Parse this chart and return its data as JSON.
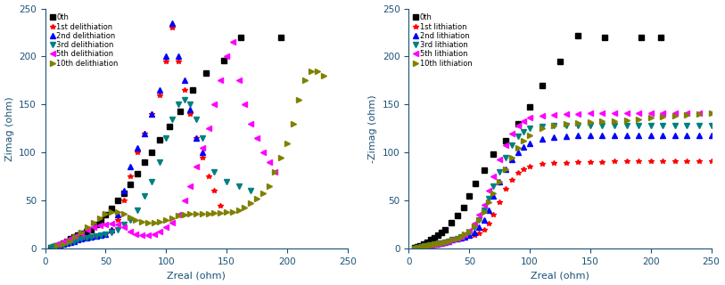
{
  "panel_a": {
    "xlabel": "Zreal (ohm)",
    "ylabel": "Zimag (ohm)",
    "xlim": [
      0,
      250
    ],
    "ylim": [
      0,
      250
    ],
    "legend_labels": [
      "0th",
      "1st delithiation",
      "2nd delithiation",
      "3rd delithiation",
      "5th delithiation",
      "10th delithiation"
    ],
    "colors": [
      "#000000",
      "#ff0000",
      "#0000ff",
      "#008080",
      "#ff00ff",
      "#808000"
    ],
    "markers": [
      "s",
      "*",
      "^",
      "v",
      "<",
      ">"
    ],
    "markersizes": [
      4,
      4,
      4,
      4,
      4,
      4
    ],
    "series": [
      {
        "zreal": [
          5,
          7,
          9,
          12,
          15,
          18,
          21,
          24,
          27,
          30,
          34,
          38,
          42,
          46,
          50,
          55,
          60,
          65,
          70,
          76,
          82,
          88,
          95,
          103,
          112,
          122,
          133,
          148,
          162,
          195
        ],
        "zimag": [
          1,
          2,
          3,
          4,
          6,
          8,
          10,
          12,
          14,
          16,
          18,
          20,
          25,
          30,
          35,
          42,
          50,
          58,
          67,
          78,
          90,
          100,
          113,
          127,
          143,
          165,
          183,
          196,
          220,
          220
        ]
      },
      {
        "zreal": [
          5,
          7,
          9,
          12,
          15,
          18,
          21,
          24,
          27,
          30,
          34,
          38,
          42,
          46,
          50,
          55,
          60,
          65,
          70,
          76,
          82,
          88,
          95,
          100,
          105,
          110,
          115,
          120,
          125,
          130,
          135,
          140,
          145
        ],
        "zimag": [
          1,
          2,
          3,
          4,
          5,
          6,
          7,
          8,
          9,
          10,
          11,
          12,
          13,
          14,
          15,
          20,
          30,
          50,
          75,
          100,
          120,
          140,
          160,
          195,
          230,
          195,
          165,
          140,
          115,
          95,
          75,
          60,
          45
        ]
      },
      {
        "zreal": [
          5,
          7,
          9,
          12,
          15,
          18,
          21,
          24,
          27,
          30,
          34,
          38,
          42,
          46,
          50,
          55,
          60,
          65,
          70,
          76,
          82,
          88,
          95,
          100,
          105,
          110,
          115,
          120,
          125,
          130
        ],
        "zimag": [
          1,
          2,
          3,
          4,
          5,
          6,
          7,
          8,
          9,
          10,
          11,
          12,
          13,
          14,
          15,
          20,
          35,
          60,
          85,
          105,
          120,
          140,
          165,
          200,
          235,
          200,
          175,
          145,
          115,
          100
        ]
      },
      {
        "zreal": [
          5,
          7,
          9,
          12,
          15,
          18,
          21,
          24,
          27,
          30,
          34,
          38,
          42,
          46,
          50,
          55,
          60,
          65,
          70,
          76,
          82,
          88,
          95,
          100,
          105,
          110,
          115,
          120,
          125,
          130,
          140,
          150,
          160,
          170
        ],
        "zimag": [
          1,
          2,
          3,
          4,
          5,
          6,
          7,
          8,
          9,
          10,
          11,
          12,
          13,
          14,
          15,
          17,
          20,
          25,
          30,
          40,
          55,
          70,
          90,
          115,
          135,
          150,
          155,
          150,
          135,
          115,
          80,
          70,
          65,
          60
        ]
      },
      {
        "zreal": [
          10,
          15,
          20,
          25,
          30,
          35,
          40,
          45,
          50,
          55,
          60,
          65,
          70,
          75,
          80,
          85,
          90,
          95,
          100,
          105,
          110,
          115,
          120,
          125,
          130,
          135,
          140,
          145,
          150,
          155,
          160,
          165,
          170,
          175,
          180,
          185,
          190
        ],
        "zimag": [
          5,
          8,
          10,
          13,
          16,
          20,
          22,
          24,
          25,
          26,
          25,
          22,
          18,
          15,
          14,
          14,
          15,
          18,
          22,
          27,
          35,
          50,
          65,
          85,
          105,
          125,
          150,
          175,
          200,
          215,
          175,
          150,
          130,
          115,
          100,
          90,
          80
        ]
      },
      {
        "zreal": [
          10,
          15,
          20,
          25,
          30,
          35,
          40,
          45,
          50,
          55,
          60,
          65,
          70,
          75,
          80,
          85,
          90,
          95,
          100,
          105,
          110,
          115,
          120,
          125,
          130,
          135,
          140,
          145,
          150,
          155,
          160,
          165,
          170,
          175,
          180,
          185,
          190,
          195,
          200,
          205,
          210,
          215,
          220,
          225,
          230
        ],
        "zimag": [
          3,
          5,
          8,
          12,
          17,
          22,
          27,
          32,
          36,
          38,
          38,
          36,
          33,
          30,
          28,
          27,
          27,
          28,
          30,
          32,
          34,
          35,
          36,
          36,
          36,
          36,
          37,
          37,
          38,
          38,
          40,
          43,
          47,
          52,
          58,
          65,
          80,
          95,
          110,
          130,
          155,
          175,
          185,
          185,
          180
        ]
      }
    ]
  },
  "panel_b": {
    "xlabel": "Zreal (ohm)",
    "ylabel": "-Zimag (ohm)",
    "xlim": [
      0,
      250
    ],
    "ylim": [
      0,
      250
    ],
    "legend_labels": [
      "0th",
      "1st lithiation",
      "2nd lithiation",
      "3rd lithiation",
      "5th lithiation",
      "10th lithiation"
    ],
    "colors": [
      "#000000",
      "#ff0000",
      "#0000ff",
      "#008080",
      "#ff00ff",
      "#808000"
    ],
    "markers": [
      "s",
      "*",
      "^",
      "v",
      "<",
      ">"
    ],
    "markersizes": [
      4,
      4,
      4,
      4,
      4,
      4
    ],
    "series": [
      {
        "zreal": [
          5,
          7,
          9,
          12,
          15,
          18,
          21,
          24,
          27,
          30,
          35,
          40,
          45,
          50,
          55,
          62,
          70,
          80,
          90,
          100,
          110,
          125,
          140,
          162,
          192,
          208
        ],
        "zimag": [
          1,
          2,
          3,
          5,
          7,
          9,
          11,
          14,
          17,
          20,
          27,
          34,
          43,
          55,
          68,
          82,
          98,
          112,
          130,
          148,
          170,
          195,
          222,
          220,
          220,
          220
        ]
      },
      {
        "zreal": [
          5,
          7,
          9,
          11,
          13,
          15,
          17,
          19,
          21,
          23,
          25,
          27,
          30,
          33,
          36,
          40,
          43,
          46,
          50,
          54,
          58,
          62,
          66,
          70,
          75,
          80,
          85,
          90,
          95,
          100,
          110,
          120,
          130,
          140,
          150,
          160,
          170,
          180,
          190,
          200,
          210,
          220,
          230,
          240,
          250
        ],
        "zimag": [
          0.5,
          1,
          1.5,
          2,
          2.5,
          3,
          3.5,
          4,
          4.5,
          5,
          5.5,
          6,
          7,
          8,
          9,
          10,
          11,
          12,
          13,
          14,
          16,
          20,
          26,
          35,
          48,
          62,
          72,
          79,
          83,
          85,
          88,
          89,
          89,
          90,
          90,
          90,
          91,
          91,
          91,
          91,
          91,
          91,
          91,
          91,
          91
        ]
      },
      {
        "zreal": [
          5,
          7,
          9,
          11,
          13,
          15,
          17,
          19,
          21,
          23,
          25,
          27,
          30,
          33,
          36,
          40,
          43,
          46,
          50,
          54,
          58,
          62,
          66,
          70,
          75,
          80,
          85,
          90,
          95,
          100,
          110,
          120,
          130,
          140,
          150,
          160,
          170,
          180,
          190,
          200,
          210,
          220,
          230,
          240,
          250
        ],
        "zimag": [
          0.5,
          1,
          1.5,
          2,
          2.5,
          3,
          3.5,
          4,
          4.5,
          5,
          5.5,
          6,
          7,
          8,
          9,
          10,
          11,
          12,
          14,
          17,
          22,
          30,
          40,
          55,
          70,
          83,
          93,
          100,
          106,
          110,
          114,
          116,
          117,
          118,
          118,
          118,
          118,
          118,
          118,
          118,
          118,
          118,
          118,
          118,
          118
        ]
      },
      {
        "zreal": [
          5,
          7,
          9,
          11,
          13,
          15,
          17,
          19,
          21,
          23,
          25,
          27,
          30,
          33,
          36,
          40,
          43,
          46,
          50,
          54,
          58,
          62,
          66,
          70,
          75,
          80,
          85,
          90,
          95,
          100,
          110,
          120,
          130,
          140,
          150,
          160,
          170,
          180,
          190,
          200,
          210,
          220,
          230,
          240,
          250
        ],
        "zimag": [
          0.5,
          1,
          1.5,
          2,
          2.5,
          3,
          3.5,
          4,
          4.5,
          5,
          5.5,
          6,
          7,
          8,
          9,
          10,
          12,
          14,
          17,
          22,
          30,
          40,
          52,
          65,
          80,
          95,
          108,
          117,
          122,
          125,
          127,
          128,
          128,
          128,
          128,
          128,
          128,
          128,
          128,
          128,
          128,
          128,
          128,
          128,
          128
        ]
      },
      {
        "zreal": [
          5,
          7,
          9,
          11,
          13,
          15,
          17,
          19,
          21,
          23,
          25,
          27,
          30,
          33,
          36,
          40,
          43,
          46,
          50,
          54,
          58,
          62,
          66,
          70,
          75,
          80,
          85,
          90,
          95,
          100,
          110,
          120,
          130,
          140,
          150,
          160,
          170,
          180,
          190,
          200,
          210,
          220,
          230,
          240,
          250
        ],
        "zimag": [
          0.5,
          1,
          1.5,
          2,
          2.5,
          3,
          3.5,
          4,
          4.5,
          5,
          5.5,
          6,
          7,
          8,
          9,
          10,
          12,
          15,
          19,
          26,
          35,
          46,
          60,
          75,
          93,
          108,
          120,
          128,
          133,
          136,
          138,
          139,
          140,
          140,
          141,
          141,
          141,
          141,
          141,
          141,
          141,
          141,
          141,
          141,
          141
        ]
      },
      {
        "zreal": [
          5,
          7,
          9,
          11,
          13,
          15,
          17,
          19,
          21,
          23,
          25,
          27,
          30,
          33,
          36,
          40,
          43,
          46,
          50,
          54,
          58,
          62,
          66,
          70,
          75,
          80,
          85,
          90,
          95,
          100,
          110,
          120,
          130,
          140,
          150,
          160,
          170,
          180,
          190,
          200,
          210,
          220,
          230,
          240,
          250
        ],
        "zimag": [
          0.5,
          1,
          1.5,
          2,
          2.5,
          3,
          3.5,
          4,
          4.5,
          5,
          5.5,
          6,
          7,
          8,
          9,
          10,
          12,
          15,
          18,
          23,
          30,
          38,
          48,
          58,
          70,
          83,
          95,
          105,
          112,
          118,
          125,
          128,
          130,
          131,
          132,
          133,
          133,
          134,
          135,
          136,
          137,
          138,
          139,
          140,
          141
        ]
      }
    ]
  }
}
